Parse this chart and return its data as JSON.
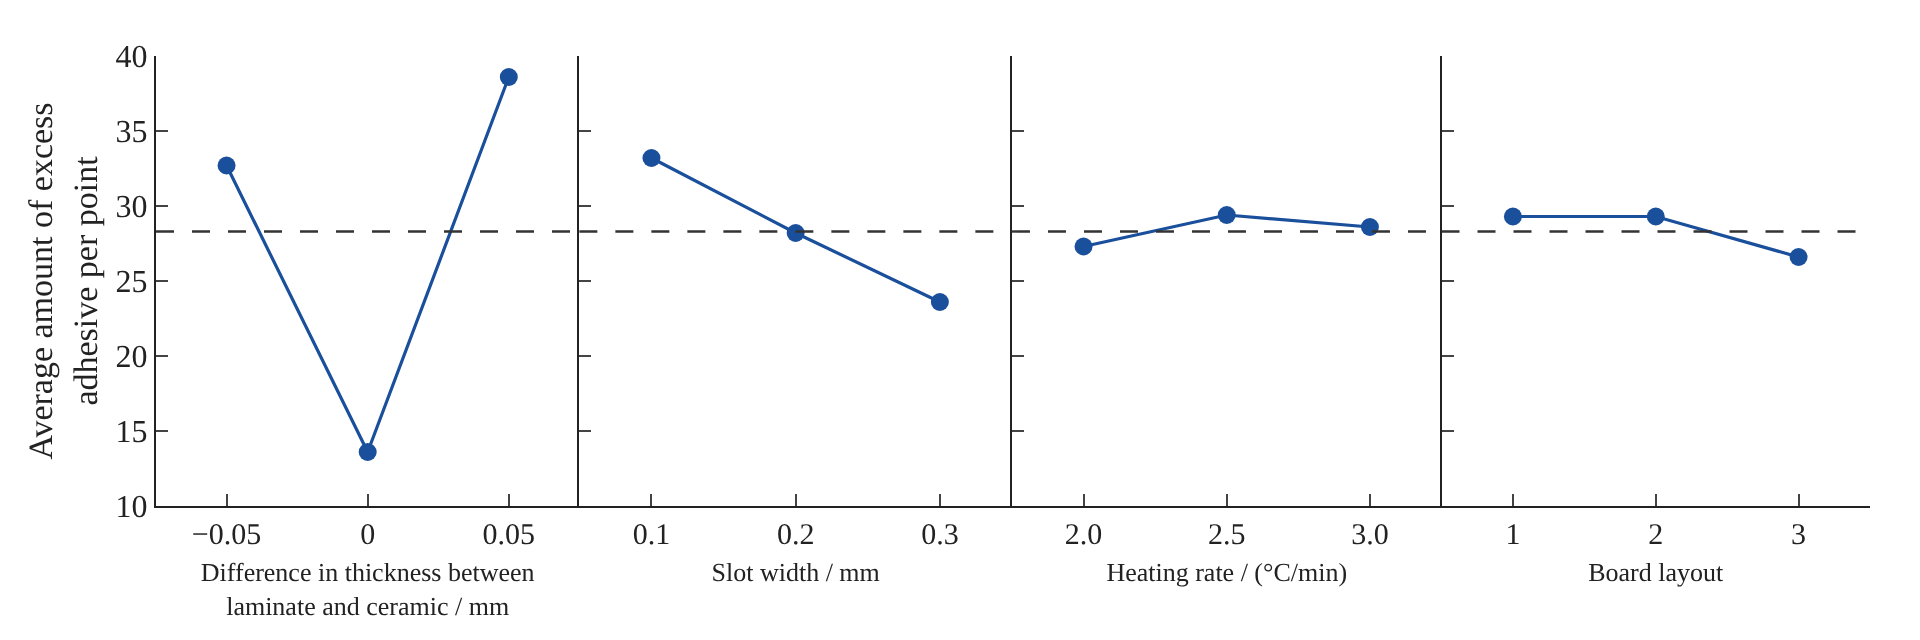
{
  "chart_data": [
    {
      "type": "line",
      "xlabel": "Difference in thickness between laminate and ceramic / mm",
      "ylabel": "Average amount of excess adhesive per point",
      "categories": [
        "−0.05",
        "0",
        "0.05"
      ],
      "series": [
        {
          "color": "#1a4f9c",
          "values": [
            32.7,
            13.6,
            38.6
          ]
        }
      ],
      "ylim": [
        10,
        40
      ],
      "yticks": [
        10,
        15,
        20,
        25,
        30,
        35,
        40
      ],
      "marker": "circle",
      "line_style": "solid",
      "ref_lines": [
        {
          "axis": "y",
          "value": 28.3,
          "color": "#333333",
          "line_style": "dashed"
        }
      ]
    },
    {
      "type": "line",
      "xlabel": "Slot width / mm",
      "categories": [
        "0.1",
        "0.2",
        "0.3"
      ],
      "series": [
        {
          "color": "#1a4f9c",
          "values": [
            33.2,
            28.2,
            23.6
          ]
        }
      ],
      "ylim": [
        10,
        40
      ],
      "yticks": [
        10,
        15,
        20,
        25,
        30,
        35,
        40
      ],
      "tick_labels": "x",
      "marker": "circle",
      "line_style": "solid",
      "ref_lines": [
        {
          "axis": "y",
          "value": 28.3,
          "color": "#333333",
          "line_style": "dashed"
        }
      ]
    },
    {
      "type": "line",
      "xlabel": "Heating rate / (°C/min)",
      "categories": [
        "2.0",
        "2.5",
        "3.0"
      ],
      "series": [
        {
          "color": "#1a4f9c",
          "values": [
            27.3,
            29.4,
            28.6
          ]
        }
      ],
      "ylim": [
        10,
        40
      ],
      "yticks": [
        10,
        15,
        20,
        25,
        30,
        35,
        40
      ],
      "tick_labels": "x",
      "marker": "circle",
      "line_style": "solid",
      "ref_lines": [
        {
          "axis": "y",
          "value": 28.3,
          "color": "#333333",
          "line_style": "dashed"
        }
      ]
    },
    {
      "type": "line",
      "xlabel": "Board layout",
      "categories": [
        "1",
        "2",
        "3"
      ],
      "series": [
        {
          "color": "#1a4f9c",
          "values": [
            29.3,
            29.3,
            26.6
          ]
        }
      ],
      "ylim": [
        10,
        40
      ],
      "yticks": [
        10,
        15,
        20,
        25,
        30,
        35,
        40
      ],
      "tick_labels": "x",
      "marker": "circle",
      "line_style": "solid",
      "ref_lines": [
        {
          "axis": "y",
          "value": 28.3,
          "color": "#333333",
          "line_style": "dashed"
        }
      ]
    }
  ]
}
